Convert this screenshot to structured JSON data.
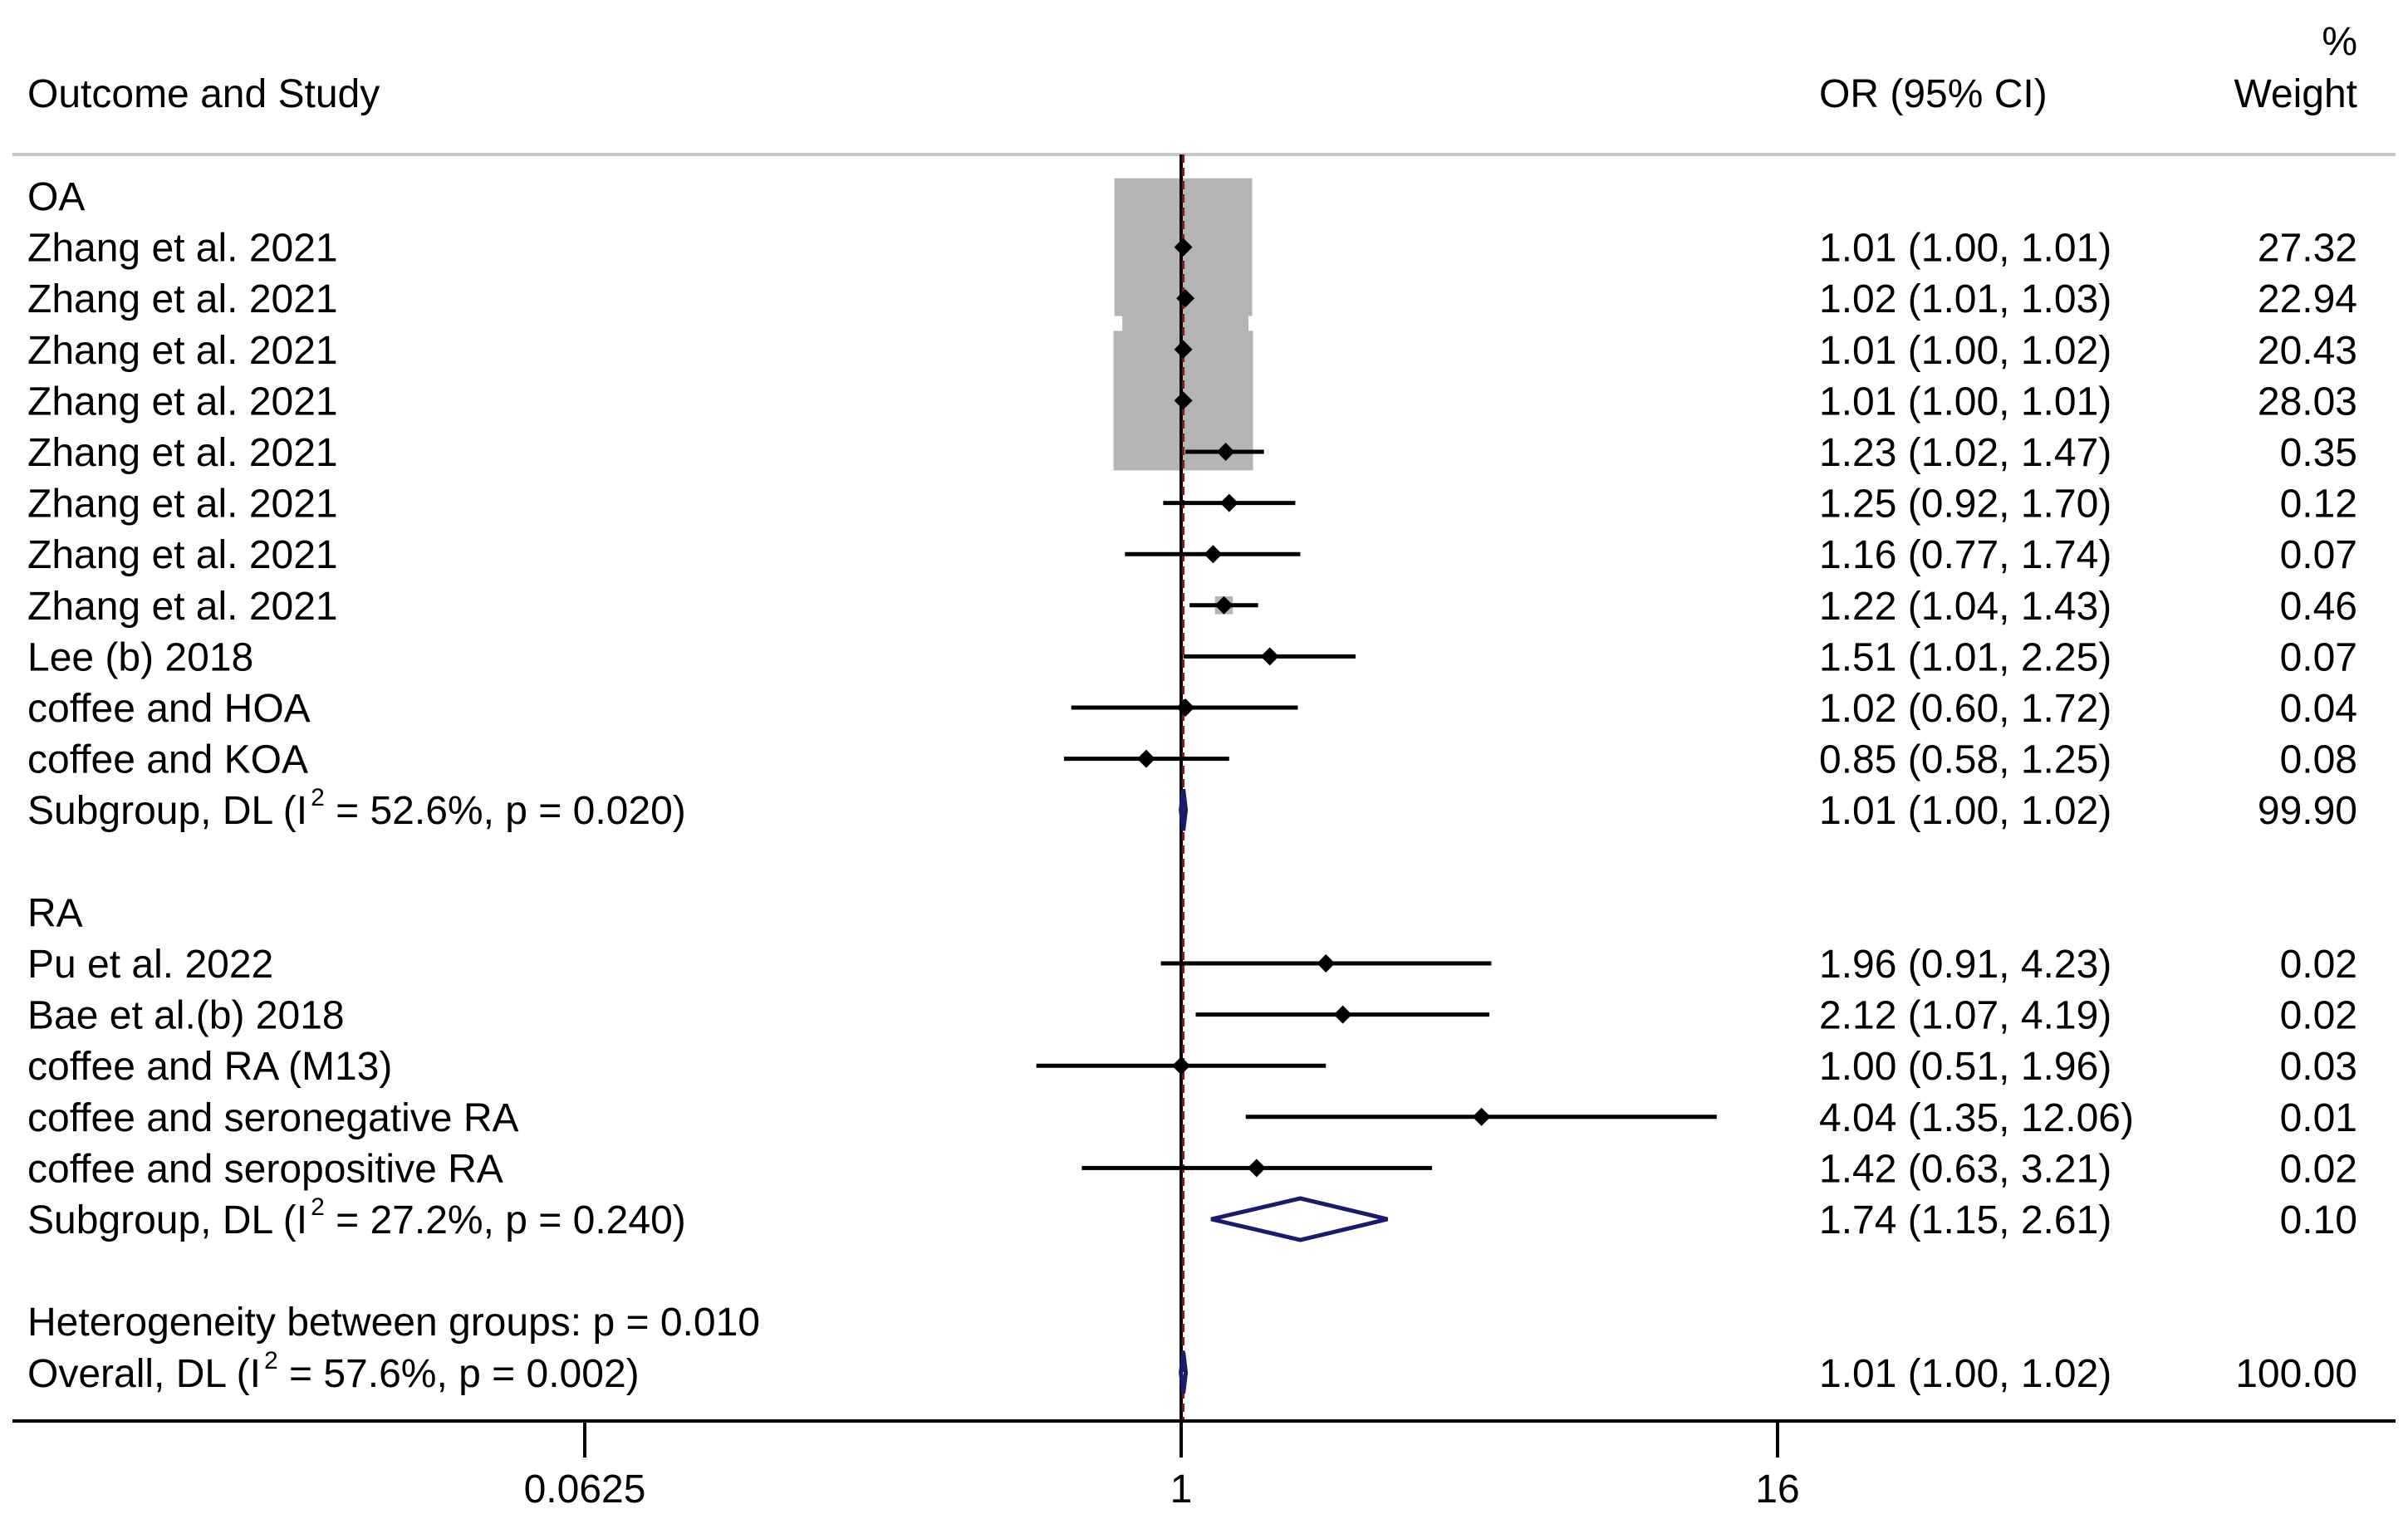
{
  "chart_data": {
    "type": "forest",
    "headers": {
      "study": "Outcome and Study",
      "ci": "OR (95% CI)",
      "weight_pct": "%",
      "weight": "Weight"
    },
    "x_scale": "log",
    "xlim": [
      0.0625,
      16
    ],
    "xticks": [
      {
        "value": 0.0625,
        "label": "0.0625"
      },
      {
        "value": 1,
        "label": "1"
      },
      {
        "value": 16,
        "label": "16"
      }
    ],
    "null_line": 1,
    "overall_line": 1.01,
    "rows": [
      {
        "kind": "group",
        "label": "OA"
      },
      {
        "kind": "study",
        "label": "Zhang et al. 2021",
        "or": 1.01,
        "lo": 1.0,
        "hi": 1.01,
        "ci_text": "1.01 (1.00, 1.01)",
        "weight": 27.32,
        "weight_text": "27.32"
      },
      {
        "kind": "study",
        "label": "Zhang et al. 2021",
        "or": 1.02,
        "lo": 1.01,
        "hi": 1.03,
        "ci_text": "1.02 (1.01, 1.03)",
        "weight": 22.94,
        "weight_text": "22.94"
      },
      {
        "kind": "study",
        "label": "Zhang et al. 2021",
        "or": 1.01,
        "lo": 1.0,
        "hi": 1.02,
        "ci_text": "1.01 (1.00, 1.02)",
        "weight": 20.43,
        "weight_text": "20.43"
      },
      {
        "kind": "study",
        "label": "Zhang et al. 2021",
        "or": 1.01,
        "lo": 1.0,
        "hi": 1.01,
        "ci_text": "1.01 (1.00, 1.01)",
        "weight": 28.03,
        "weight_text": "28.03"
      },
      {
        "kind": "study",
        "label": "Zhang et al. 2021",
        "or": 1.23,
        "lo": 1.02,
        "hi": 1.47,
        "ci_text": "1.23 (1.02, 1.47)",
        "weight": 0.35,
        "weight_text": "0.35"
      },
      {
        "kind": "study",
        "label": "Zhang et al. 2021",
        "or": 1.25,
        "lo": 0.92,
        "hi": 1.7,
        "ci_text": "1.25 (0.92, 1.70)",
        "weight": 0.12,
        "weight_text": "0.12"
      },
      {
        "kind": "study",
        "label": "Zhang et al. 2021",
        "or": 1.16,
        "lo": 0.77,
        "hi": 1.74,
        "ci_text": "1.16 (0.77, 1.74)",
        "weight": 0.07,
        "weight_text": "0.07"
      },
      {
        "kind": "study",
        "label": "Zhang et al. 2021",
        "or": 1.22,
        "lo": 1.04,
        "hi": 1.43,
        "ci_text": "1.22 (1.04, 1.43)",
        "weight": 0.46,
        "weight_text": "0.46"
      },
      {
        "kind": "study",
        "label": "Lee (b) 2018",
        "or": 1.51,
        "lo": 1.01,
        "hi": 2.25,
        "ci_text": "1.51 (1.01, 2.25)",
        "weight": 0.07,
        "weight_text": "0.07"
      },
      {
        "kind": "study",
        "label": "coffee and HOA",
        "or": 1.02,
        "lo": 0.6,
        "hi": 1.72,
        "ci_text": "1.02 (0.60, 1.72)",
        "weight": 0.04,
        "weight_text": "0.04"
      },
      {
        "kind": "study",
        "label": "coffee and KOA",
        "or": 0.85,
        "lo": 0.58,
        "hi": 1.25,
        "ci_text": "0.85 (0.58, 1.25)",
        "weight": 0.08,
        "weight_text": "0.08"
      },
      {
        "kind": "subgroup",
        "label_pre": "Subgroup, DL (I",
        "label_sup": "2",
        "label_post": " = 52.6%, p = 0.020)",
        "or": 1.01,
        "lo": 1.0,
        "hi": 1.02,
        "ci_text": "1.01 (1.00, 1.02)",
        "weight": 99.9,
        "weight_text": "99.90"
      },
      {
        "kind": "blank"
      },
      {
        "kind": "group",
        "label": "RA"
      },
      {
        "kind": "study",
        "label": "Pu et al. 2022",
        "or": 1.96,
        "lo": 0.91,
        "hi": 4.23,
        "ci_text": "1.96 (0.91, 4.23)",
        "weight": 0.02,
        "weight_text": "0.02"
      },
      {
        "kind": "study",
        "label": "Bae et al.(b) 2018",
        "or": 2.12,
        "lo": 1.07,
        "hi": 4.19,
        "ci_text": "2.12 (1.07, 4.19)",
        "weight": 0.02,
        "weight_text": "0.02"
      },
      {
        "kind": "study",
        "label": "coffee and RA (M13)",
        "or": 1.0,
        "lo": 0.51,
        "hi": 1.96,
        "ci_text": "1.00 (0.51, 1.96)",
        "weight": 0.03,
        "weight_text": "0.03"
      },
      {
        "kind": "study",
        "label": "coffee and seronegative RA",
        "or": 4.04,
        "lo": 1.35,
        "hi": 12.06,
        "ci_text": "4.04 (1.35, 12.06)",
        "weight": 0.01,
        "weight_text": "0.01"
      },
      {
        "kind": "study",
        "label": "coffee and seropositive RA",
        "or": 1.42,
        "lo": 0.63,
        "hi": 3.21,
        "ci_text": "1.42 (0.63, 3.21)",
        "weight": 0.02,
        "weight_text": "0.02"
      },
      {
        "kind": "subgroup",
        "label_pre": "Subgroup, DL (I",
        "label_sup": "2",
        "label_post": " = 27.2%, p = 0.240)",
        "or": 1.74,
        "lo": 1.15,
        "hi": 2.61,
        "ci_text": "1.74 (1.15, 2.61)",
        "weight": 0.1,
        "weight_text": "0.10"
      },
      {
        "kind": "blank"
      },
      {
        "kind": "note",
        "label": "Heterogeneity between groups: p = 0.010"
      },
      {
        "kind": "overall",
        "label_pre": "Overall, DL (I",
        "label_sup": "2",
        "label_post": " = 57.6%, p = 0.002)",
        "or": 1.01,
        "lo": 1.0,
        "hi": 1.02,
        "ci_text": "1.01 (1.00, 1.02)",
        "weight": 100.0,
        "weight_text": "100.00"
      }
    ],
    "colors": {
      "text": "#000000",
      "axis": "#000000",
      "header_rule": "#c8c8c8",
      "weight_box": "#b4b4b4",
      "point": "#000000",
      "ci_line": "#000000",
      "pooled_diamond": "#1a1a6e",
      "overall_line": "#8b1a1a"
    }
  }
}
